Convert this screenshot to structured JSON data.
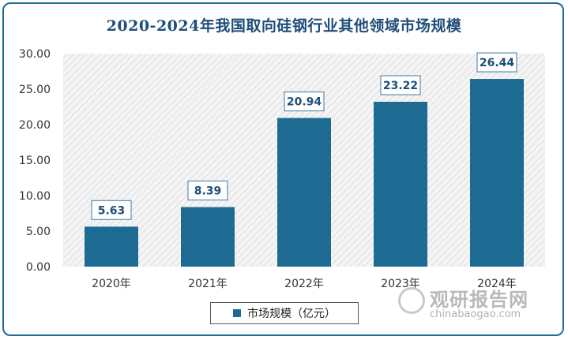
{
  "chart_data": {
    "type": "bar",
    "title": "2020-2024年我国取向硅钢行业其他领域市场规模",
    "categories": [
      "2020年",
      "2021年",
      "2022年",
      "2023年",
      "2024年"
    ],
    "series": [
      {
        "name": "市场规模（亿元）",
        "values": [
          5.63,
          8.39,
          20.94,
          23.22,
          26.44
        ]
      }
    ],
    "value_labels": [
      "5.63",
      "8.39",
      "20.94",
      "23.22",
      "26.44"
    ],
    "y_ticks": [
      "0.00",
      "5.00",
      "10.00",
      "15.00",
      "20.00",
      "25.00",
      "30.00"
    ],
    "ylim": [
      0,
      30
    ],
    "xlabel": "",
    "ylabel": "",
    "grid": false,
    "legend_position": "bottom",
    "bar_color": "#1d6b93",
    "plot_background": "hatched light gray"
  },
  "watermark": {
    "main": "观研报告网",
    "sub": "chinabaogao.com"
  }
}
